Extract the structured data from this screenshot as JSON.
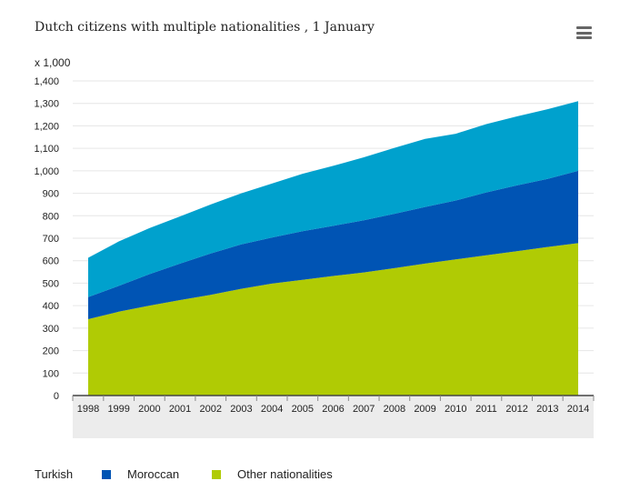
{
  "chart_data": {
    "type": "area",
    "stacked": true,
    "title": "Dutch citizens with multiple nationalities , 1 January",
    "unit_label": "x 1,000",
    "categories": [
      "1998",
      "1999",
      "2000",
      "2001",
      "2002",
      "2003",
      "2004",
      "2005",
      "2006",
      "2007",
      "2008",
      "2009",
      "2010",
      "2011",
      "2012",
      "2013",
      "2014"
    ],
    "ylim": [
      0,
      1400
    ],
    "yticks": [
      0,
      100,
      200,
      300,
      400,
      500,
      600,
      700,
      800,
      900,
      1000,
      1100,
      1200,
      1300,
      1400
    ],
    "ytick_labels": [
      "0",
      "100",
      "200",
      "300",
      "400",
      "500",
      "600",
      "700",
      "800",
      "900",
      "1,000",
      "1,100",
      "1,200",
      "1,300",
      "1,400"
    ],
    "grid": true,
    "legend_position": "bottom-left",
    "series": [
      {
        "name": "Other nationalities",
        "color": "#b0cb04",
        "values": [
          340,
          373,
          400,
          425,
          448,
          475,
          498,
          515,
          532,
          548,
          567,
          587,
          606,
          624,
          642,
          661,
          678
        ]
      },
      {
        "name": "Moroccan",
        "color": "#0054b4",
        "values": [
          98,
          115,
          140,
          162,
          184,
          198,
          205,
          216,
          223,
          232,
          242,
          252,
          262,
          280,
          293,
          303,
          322
        ]
      },
      {
        "name": "Turkish",
        "color": "#00a1cd",
        "values": [
          175,
          198,
          205,
          210,
          218,
          227,
          240,
          256,
          267,
          280,
          293,
          303,
          297,
          304,
          307,
          310,
          310
        ]
      }
    ],
    "legend": [
      {
        "label": "Turkish",
        "color": "#00a1cd",
        "show_swatch": false
      },
      {
        "label": "Moroccan",
        "color": "#0054b4",
        "show_swatch": true
      },
      {
        "label": "Other nationalities",
        "color": "#b0cb04",
        "show_swatch": true
      }
    ]
  }
}
